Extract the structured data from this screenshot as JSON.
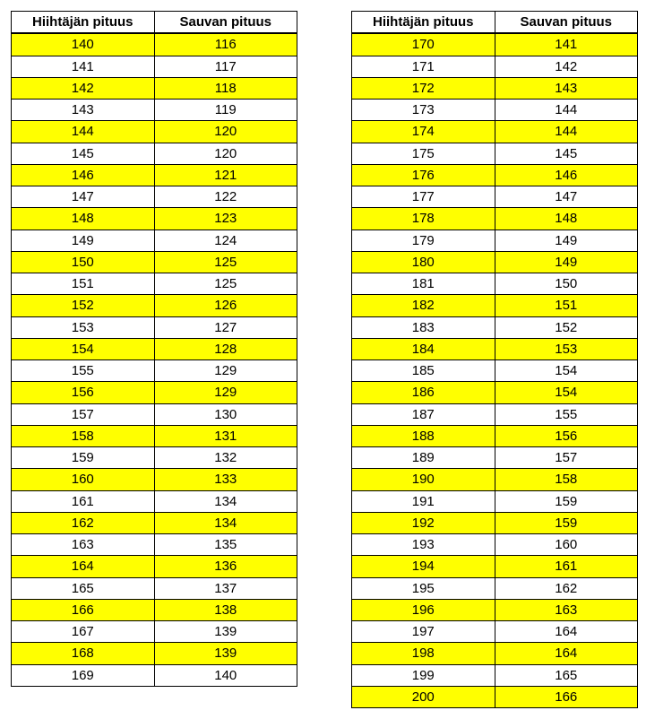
{
  "columns": [
    "Hiihtäjän pituus",
    "Sauvan pituus"
  ],
  "highlight_color": "#ffff00",
  "background_color": "#ffffff",
  "border_color": "#000000",
  "font_size": 15,
  "left_table": {
    "rows": [
      [
        140,
        116
      ],
      [
        141,
        117
      ],
      [
        142,
        118
      ],
      [
        143,
        119
      ],
      [
        144,
        120
      ],
      [
        145,
        120
      ],
      [
        146,
        121
      ],
      [
        147,
        122
      ],
      [
        148,
        123
      ],
      [
        149,
        124
      ],
      [
        150,
        125
      ],
      [
        151,
        125
      ],
      [
        152,
        126
      ],
      [
        153,
        127
      ],
      [
        154,
        128
      ],
      [
        155,
        129
      ],
      [
        156,
        129
      ],
      [
        157,
        130
      ],
      [
        158,
        131
      ],
      [
        159,
        132
      ],
      [
        160,
        133
      ],
      [
        161,
        134
      ],
      [
        162,
        134
      ],
      [
        163,
        135
      ],
      [
        164,
        136
      ],
      [
        165,
        137
      ],
      [
        166,
        138
      ],
      [
        167,
        139
      ],
      [
        168,
        139
      ],
      [
        169,
        140
      ]
    ]
  },
  "right_table": {
    "rows": [
      [
        170,
        141
      ],
      [
        171,
        142
      ],
      [
        172,
        143
      ],
      [
        173,
        144
      ],
      [
        174,
        144
      ],
      [
        175,
        145
      ],
      [
        176,
        146
      ],
      [
        177,
        147
      ],
      [
        178,
        148
      ],
      [
        179,
        149
      ],
      [
        180,
        149
      ],
      [
        181,
        150
      ],
      [
        182,
        151
      ],
      [
        183,
        152
      ],
      [
        184,
        153
      ],
      [
        185,
        154
      ],
      [
        186,
        154
      ],
      [
        187,
        155
      ],
      [
        188,
        156
      ],
      [
        189,
        157
      ],
      [
        190,
        158
      ],
      [
        191,
        159
      ],
      [
        192,
        159
      ],
      [
        193,
        160
      ],
      [
        194,
        161
      ],
      [
        195,
        162
      ],
      [
        196,
        163
      ],
      [
        197,
        164
      ],
      [
        198,
        164
      ],
      [
        199,
        165
      ],
      [
        200,
        166
      ]
    ]
  }
}
